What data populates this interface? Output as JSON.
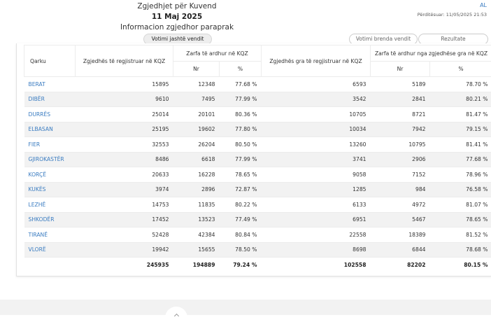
{
  "header": {
    "title": "Zgjedhjet për Kuvend",
    "date": "11 Maj 2025",
    "subtitle": "Informacion zgjedhor paraprak",
    "lang": "AL",
    "updated": "Përditësuar: 11/05/2025 21:53"
  },
  "tabs": {
    "abroad": "Votimi jashtë vendit",
    "domestic": "Votimi brenda vendit",
    "results": "Rezultate"
  },
  "table": {
    "headers": {
      "district": "Qarku",
      "registered_kqz": "Zgjedhës të regjistruar në KQZ",
      "envelopes_kqz": "Zarfa të ardhur në KQZ",
      "nr": "Nr",
      "pct": "%",
      "women_registered_kqz": "Zgjedhës gra të regjistruar në KQZ",
      "women_envelopes": "Zarfa të ardhur nga zgjedhëse gra në KQZ"
    },
    "rows": [
      {
        "name": "BERAT",
        "reg": "15895",
        "nr": "12348",
        "pct": "77.68 %",
        "wreg": "6593",
        "wnr": "5189",
        "wpct": "78.70 %"
      },
      {
        "name": "DIBËR",
        "reg": "9610",
        "nr": "7495",
        "pct": "77.99 %",
        "wreg": "3542",
        "wnr": "2841",
        "wpct": "80.21 %"
      },
      {
        "name": "DURRËS",
        "reg": "25014",
        "nr": "20101",
        "pct": "80.36 %",
        "wreg": "10705",
        "wnr": "8721",
        "wpct": "81.47 %"
      },
      {
        "name": "ELBASAN",
        "reg": "25195",
        "nr": "19602",
        "pct": "77.80 %",
        "wreg": "10034",
        "wnr": "7942",
        "wpct": "79.15 %"
      },
      {
        "name": "FIER",
        "reg": "32553",
        "nr": "26204",
        "pct": "80.50 %",
        "wreg": "13260",
        "wnr": "10795",
        "wpct": "81.41 %"
      },
      {
        "name": "GJIROKASTËR",
        "reg": "8486",
        "nr": "6618",
        "pct": "77.99 %",
        "wreg": "3741",
        "wnr": "2906",
        "wpct": "77.68 %"
      },
      {
        "name": "KORÇË",
        "reg": "20633",
        "nr": "16228",
        "pct": "78.65 %",
        "wreg": "9058",
        "wnr": "7152",
        "wpct": "78.96 %"
      },
      {
        "name": "KUKËS",
        "reg": "3974",
        "nr": "2896",
        "pct": "72.87 %",
        "wreg": "1285",
        "wnr": "984",
        "wpct": "76.58 %"
      },
      {
        "name": "LEZHË",
        "reg": "14753",
        "nr": "11835",
        "pct": "80.22 %",
        "wreg": "6133",
        "wnr": "4972",
        "wpct": "81.07 %"
      },
      {
        "name": "SHKODËR",
        "reg": "17452",
        "nr": "13523",
        "pct": "77.49 %",
        "wreg": "6951",
        "wnr": "5467",
        "wpct": "78.65 %"
      },
      {
        "name": "TIRANË",
        "reg": "52428",
        "nr": "42384",
        "pct": "80.84 %",
        "wreg": "22558",
        "wnr": "18389",
        "wpct": "81.52 %"
      },
      {
        "name": "VLORË",
        "reg": "19942",
        "nr": "15655",
        "pct": "78.50 %",
        "wreg": "8698",
        "wnr": "6844",
        "wpct": "78.68 %"
      }
    ],
    "totals": {
      "reg": "245935",
      "nr": "194889",
      "pct": "79.24 %",
      "wreg": "102558",
      "wnr": "82202",
      "wpct": "80.15 %"
    }
  }
}
